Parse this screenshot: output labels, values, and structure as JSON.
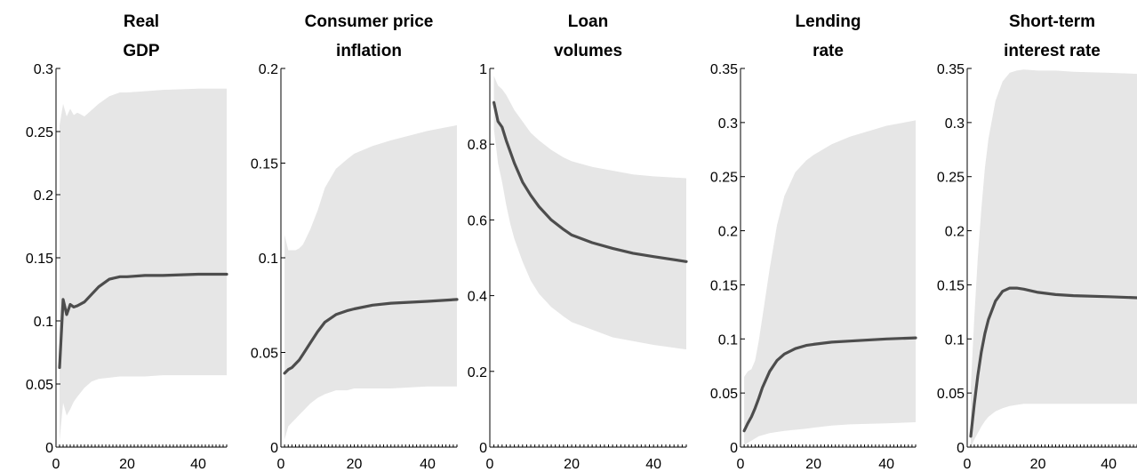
{
  "figure": {
    "colors": {
      "band": "#e6e6e6",
      "line": "#4d4d4d",
      "axis": "#000000"
    }
  },
  "chart_data": [
    {
      "type": "area",
      "title_lines": [
        "Real",
        "GDP"
      ],
      "xlim": [
        0,
        48
      ],
      "ylim": [
        0,
        0.3
      ],
      "x_ticks": [
        0,
        20,
        40
      ],
      "y_ticks": [
        0,
        0.05,
        0.1,
        0.15,
        0.2,
        0.25,
        0.3
      ],
      "y_tick_labels": [
        "0",
        "0.05",
        "0.1",
        "0.15",
        "0.2",
        "0.25",
        "0.3"
      ],
      "x": [
        1,
        2,
        3,
        4,
        5,
        6,
        8,
        10,
        12,
        15,
        18,
        20,
        25,
        30,
        40,
        48
      ],
      "median": [
        0.063,
        0.117,
        0.105,
        0.113,
        0.111,
        0.112,
        0.115,
        0.121,
        0.127,
        0.133,
        0.135,
        0.135,
        0.136,
        0.136,
        0.137,
        0.137
      ],
      "upper": [
        0.255,
        0.272,
        0.262,
        0.268,
        0.263,
        0.265,
        0.262,
        0.267,
        0.272,
        0.278,
        0.281,
        0.281,
        0.282,
        0.283,
        0.284,
        0.284
      ],
      "lower": [
        0.005,
        0.035,
        0.025,
        0.03,
        0.036,
        0.04,
        0.047,
        0.052,
        0.054,
        0.055,
        0.056,
        0.056,
        0.056,
        0.057,
        0.057,
        0.057
      ]
    },
    {
      "type": "area",
      "title_lines": [
        "Consumer price",
        "inflation"
      ],
      "xlim": [
        0,
        48
      ],
      "ylim": [
        0,
        0.2
      ],
      "x_ticks": [
        0,
        20,
        40
      ],
      "y_ticks": [
        0,
        0.05,
        0.1,
        0.15,
        0.2
      ],
      "y_tick_labels": [
        "0",
        "0.05",
        "0.1",
        "0.15",
        "0.2"
      ],
      "x": [
        1,
        2,
        3,
        4,
        5,
        6,
        8,
        10,
        12,
        15,
        18,
        20,
        25,
        30,
        40,
        48
      ],
      "median": [
        0.039,
        0.041,
        0.042,
        0.044,
        0.046,
        0.049,
        0.055,
        0.061,
        0.066,
        0.07,
        0.072,
        0.073,
        0.075,
        0.076,
        0.077,
        0.078
      ],
      "upper": [
        0.112,
        0.104,
        0.104,
        0.104,
        0.105,
        0.107,
        0.115,
        0.125,
        0.137,
        0.147,
        0.152,
        0.155,
        0.159,
        0.162,
        0.167,
        0.17
      ],
      "lower": [
        0.004,
        0.011,
        0.013,
        0.015,
        0.017,
        0.019,
        0.023,
        0.026,
        0.028,
        0.03,
        0.03,
        0.031,
        0.031,
        0.031,
        0.032,
        0.032
      ]
    },
    {
      "type": "area",
      "title_lines": [
        "Loan",
        "volumes"
      ],
      "xlim": [
        0,
        48
      ],
      "ylim": [
        0,
        1
      ],
      "x_ticks": [
        0,
        20,
        40
      ],
      "y_ticks": [
        0,
        0.2,
        0.4,
        0.6,
        0.8,
        1
      ],
      "y_tick_labels": [
        "0",
        "0.2",
        "0.4",
        "0.6",
        "0.8",
        "1"
      ],
      "x": [
        1,
        2,
        3,
        4,
        5,
        6,
        8,
        10,
        12,
        15,
        18,
        20,
        25,
        30,
        35,
        40,
        48
      ],
      "median": [
        0.91,
        0.86,
        0.845,
        0.81,
        0.78,
        0.75,
        0.7,
        0.665,
        0.635,
        0.6,
        0.575,
        0.56,
        0.54,
        0.525,
        0.512,
        0.503,
        0.49
      ],
      "upper": [
        0.98,
        0.955,
        0.945,
        0.93,
        0.91,
        0.89,
        0.86,
        0.83,
        0.81,
        0.785,
        0.765,
        0.755,
        0.74,
        0.73,
        0.72,
        0.715,
        0.71
      ],
      "lower": [
        0.84,
        0.75,
        0.7,
        0.64,
        0.59,
        0.55,
        0.49,
        0.44,
        0.405,
        0.37,
        0.345,
        0.33,
        0.31,
        0.29,
        0.28,
        0.27,
        0.258
      ]
    },
    {
      "type": "area",
      "title_lines": [
        "Lending",
        "rate"
      ],
      "xlim": [
        0,
        48
      ],
      "ylim": [
        0,
        0.35
      ],
      "x_ticks": [
        0,
        20,
        40
      ],
      "y_ticks": [
        0,
        0.05,
        0.1,
        0.15,
        0.2,
        0.25,
        0.3,
        0.35
      ],
      "y_tick_labels": [
        "0",
        "0.05",
        "0.1",
        "0.15",
        "0.2",
        "0.25",
        "0.3",
        "0.35"
      ],
      "x": [
        1,
        2,
        3,
        4,
        5,
        6,
        8,
        10,
        12,
        15,
        18,
        20,
        25,
        30,
        40,
        48
      ],
      "median": [
        0.015,
        0.022,
        0.028,
        0.036,
        0.045,
        0.055,
        0.07,
        0.08,
        0.086,
        0.091,
        0.094,
        0.095,
        0.097,
        0.098,
        0.1,
        0.101
      ],
      "upper": [
        0.065,
        0.07,
        0.072,
        0.08,
        0.098,
        0.12,
        0.165,
        0.205,
        0.232,
        0.254,
        0.265,
        0.27,
        0.28,
        0.287,
        0.297,
        0.302
      ],
      "lower": [
        0.002,
        0.004,
        0.006,
        0.008,
        0.01,
        0.011,
        0.013,
        0.014,
        0.015,
        0.016,
        0.017,
        0.018,
        0.02,
        0.021,
        0.022,
        0.023
      ]
    },
    {
      "type": "area",
      "title_lines": [
        "Short-term",
        "interest rate"
      ],
      "xlim": [
        0,
        48
      ],
      "ylim": [
        0,
        0.35
      ],
      "x_ticks": [
        0,
        20,
        40
      ],
      "y_ticks": [
        0,
        0.05,
        0.1,
        0.15,
        0.2,
        0.25,
        0.3,
        0.35
      ],
      "y_tick_labels": [
        "0",
        "0.05",
        "0.1",
        "0.15",
        "0.2",
        "0.25",
        "0.3",
        "0.35"
      ],
      "x": [
        1,
        2,
        3,
        4,
        5,
        6,
        8,
        10,
        12,
        14,
        16,
        20,
        25,
        30,
        40,
        48
      ],
      "median": [
        0.01,
        0.04,
        0.066,
        0.088,
        0.105,
        0.118,
        0.135,
        0.144,
        0.147,
        0.147,
        0.146,
        0.143,
        0.141,
        0.14,
        0.139,
        0.138
      ],
      "upper": [
        0.055,
        0.12,
        0.175,
        0.22,
        0.258,
        0.285,
        0.32,
        0.338,
        0.346,
        0.348,
        0.349,
        0.348,
        0.348,
        0.347,
        0.346,
        0.345
      ],
      "lower": [
        0.0,
        0.007,
        0.013,
        0.019,
        0.024,
        0.028,
        0.033,
        0.036,
        0.038,
        0.039,
        0.04,
        0.04,
        0.04,
        0.04,
        0.04,
        0.04
      ]
    }
  ]
}
